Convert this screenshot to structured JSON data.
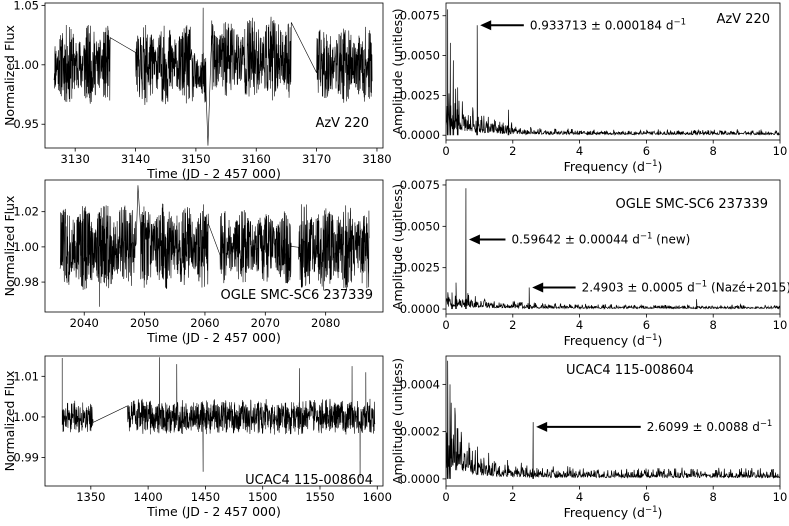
{
  "chart_data": [
    {
      "id": "lc1",
      "type": "line",
      "kind": "lightcurve",
      "label": "AzV 220",
      "xlabel": "Time (JD - 2 457 000)",
      "ylabel": "Normalized Flux",
      "xlim": [
        3125,
        3181
      ],
      "ylim": [
        0.93,
        1.052
      ],
      "xticks": [
        3130,
        3140,
        3150,
        3160,
        3170,
        3180
      ],
      "yticks": [
        0.95,
        1.0,
        1.05
      ],
      "ytick_labels": [
        "0.95",
        "1.00",
        "1.05"
      ],
      "segments": [
        {
          "start": 3126.5,
          "end": 3135.8,
          "mean": 1.0,
          "amp": 0.034
        },
        {
          "start": 3140.0,
          "end": 3149.1,
          "mean": 1.0,
          "amp": 0.034
        },
        {
          "start": 3149.3,
          "end": 3151.7,
          "mean": 0.99,
          "amp": 0.025
        },
        {
          "start": 3152.5,
          "end": 3165.8,
          "mean": 1.005,
          "amp": 0.036
        },
        {
          "start": 3170.0,
          "end": 3179.2,
          "mean": 1.0,
          "amp": 0.032
        }
      ],
      "spikes": [
        {
          "x": 3151.2,
          "y": 1.048
        },
        {
          "x": 3152.0,
          "y": 0.932
        }
      ],
      "seed": 11
    },
    {
      "id": "ps1",
      "type": "line",
      "kind": "periodogram",
      "label": "AzV 220",
      "xlabel": "Frequency (d⁻¹)",
      "ylabel": "Amplitude (unitless)",
      "xlim": [
        0,
        10
      ],
      "ylim": [
        -0.0003,
        0.0083
      ],
      "xticks": [
        0,
        2,
        4,
        6,
        8,
        10
      ],
      "yticks": [
        0.0,
        0.0025,
        0.005,
        0.0075
      ],
      "ytick_labels": [
        "0.0000",
        "0.0025",
        "0.0050",
        "0.0075"
      ],
      "peaks": [
        {
          "f": 0.933713,
          "amp": 0.0069
        },
        {
          "f": 0.05,
          "amp": 0.0079
        },
        {
          "f": 0.13,
          "amp": 0.0058
        },
        {
          "f": 0.22,
          "amp": 0.0047
        },
        {
          "f": 0.35,
          "amp": 0.003
        },
        {
          "f": 1.87,
          "amp": 0.0016
        }
      ],
      "noise": {
        "base": 0.00025,
        "low": 0.0028,
        "decay": 0.9
      },
      "annotations": [
        {
          "text": "0.933713 ± 0.000184 d",
          "sup": "−1",
          "x": 0.933713,
          "y": 0.0069,
          "text_x": 2.45
        }
      ],
      "seed": 21
    },
    {
      "id": "lc2",
      "type": "line",
      "kind": "lightcurve",
      "label": "OGLE SMC-SC6 237339",
      "xlabel": "Time (JD - 2 457 000)",
      "ylabel": "Normalized Flux",
      "xlim": [
        2033.5,
        2089.5
      ],
      "ylim": [
        0.963,
        1.038
      ],
      "xticks": [
        2040,
        2050,
        2060,
        2070,
        2080
      ],
      "yticks": [
        0.98,
        1.0,
        1.02
      ],
      "ytick_labels": [
        "0.98",
        "1.00",
        "1.02"
      ],
      "segments": [
        {
          "start": 2036.0,
          "end": 2048.6,
          "mean": 1.0,
          "amp": 0.026
        },
        {
          "start": 2049.3,
          "end": 2060.6,
          "mean": 1.0,
          "amp": 0.025
        },
        {
          "start": 2062.5,
          "end": 2074.3,
          "mean": 1.0,
          "amp": 0.021
        },
        {
          "start": 2075.5,
          "end": 2087.2,
          "mean": 1.0,
          "amp": 0.025
        }
      ],
      "spikes": [
        {
          "x": 2048.9,
          "y": 1.035
        },
        {
          "x": 2042.5,
          "y": 0.966
        }
      ],
      "seed": 33
    },
    {
      "id": "ps2",
      "type": "line",
      "kind": "periodogram",
      "label": "OGLE SMC-SC6 237339",
      "xlabel": "Frequency (d⁻¹)",
      "ylabel": "Amplitude (unitless)",
      "xlim": [
        0,
        10
      ],
      "ylim": [
        -0.0003,
        0.0078
      ],
      "xticks": [
        0,
        2,
        4,
        6,
        8,
        10
      ],
      "yticks": [
        0.0,
        0.0025,
        0.005,
        0.0075
      ],
      "ytick_labels": [
        "0.0000",
        "0.0025",
        "0.0050",
        "0.0075"
      ],
      "peaks": [
        {
          "f": 0.59642,
          "amp": 0.0073
        },
        {
          "f": 2.4903,
          "amp": 0.0013
        },
        {
          "f": 0.3,
          "amp": 0.0016
        },
        {
          "f": 0.18,
          "amp": 0.001
        },
        {
          "f": 7.5,
          "amp": 0.0006
        }
      ],
      "noise": {
        "base": 0.0002,
        "low": 0.0008,
        "decay": 1.2
      },
      "annotations": [
        {
          "text": "0.59642 ± 0.00044 d",
          "sup": "−1",
          "suffix": " (new)",
          "x": 0.59642,
          "y": 0.0042,
          "text_x": 1.9
        },
        {
          "text": "2.4903 ± 0.0005 d",
          "sup": "−1",
          "suffix": " (Nazé+2015)",
          "x": 2.4903,
          "y": 0.0013,
          "text_x": 4.0
        }
      ],
      "seed": 44
    },
    {
      "id": "lc3",
      "type": "line",
      "kind": "lightcurve",
      "label": "UCAC4 115-008604",
      "xlabel": "Time (JD - 2 457 000)",
      "ylabel": "Normalized Flux",
      "xlim": [
        1310,
        1605
      ],
      "ylim": [
        0.983,
        1.015
      ],
      "xticks": [
        1350,
        1400,
        1450,
        1500,
        1550,
        1600
      ],
      "yticks": [
        0.99,
        1.0,
        1.01
      ],
      "ytick_labels": [
        "0.99",
        "1.00",
        "1.01"
      ],
      "segments": [
        {
          "start": 1325,
          "end": 1352,
          "mean": 1.0,
          "amp": 0.004
        },
        {
          "start": 1382,
          "end": 1598,
          "mean": 1.0,
          "amp": 0.0045
        }
      ],
      "spikes": [
        {
          "x": 1325,
          "y": 1.0145
        },
        {
          "x": 1410,
          "y": 1.0147
        },
        {
          "x": 1425,
          "y": 1.013
        },
        {
          "x": 1448,
          "y": 0.9865
        },
        {
          "x": 1532,
          "y": 1.012
        },
        {
          "x": 1578,
          "y": 1.0125
        },
        {
          "x": 1585,
          "y": 0.985
        },
        {
          "x": 1590,
          "y": 1.011
        }
      ],
      "seed": 55
    },
    {
      "id": "ps3",
      "type": "line",
      "kind": "periodogram",
      "label": "UCAC4 115-008604",
      "xlabel": "Frequency (d⁻¹)",
      "ylabel": "Amplitude (unitless)",
      "xlim": [
        0,
        10
      ],
      "ylim": [
        -3e-05,
        0.00052
      ],
      "xticks": [
        0,
        2,
        4,
        6,
        8,
        10
      ],
      "yticks": [
        0.0,
        0.0002,
        0.0004
      ],
      "ytick_labels": [
        "0.0000",
        "0.0002",
        "0.0004"
      ],
      "peaks": [
        {
          "f": 2.6099,
          "amp": 0.00024
        },
        {
          "f": 0.05,
          "amp": 0.0005
        },
        {
          "f": 0.12,
          "amp": 0.0004
        }
      ],
      "noise": {
        "base": 3.5e-05,
        "low": 0.00028,
        "decay": 0.75
      },
      "annotations": [
        {
          "text": "2.6099 ± 0.0088 d",
          "sup": "−1",
          "x": 2.6099,
          "y": 0.00022,
          "text_x": 5.95
        }
      ],
      "seed": 66
    }
  ]
}
